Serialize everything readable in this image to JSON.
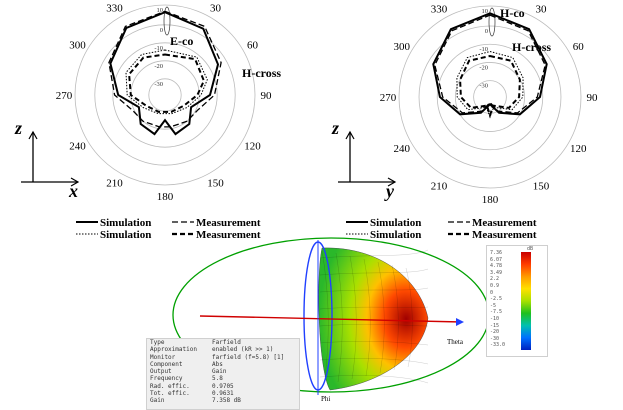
{
  "chart_data": [
    {
      "type": "polar",
      "angle_ticks": [
        "0",
        "30",
        "60",
        "90",
        "120",
        "150",
        "180",
        "210",
        "240",
        "270",
        "300",
        "330"
      ],
      "radial_ticks": [
        "10",
        "0",
        "-10",
        "-20",
        "-30"
      ],
      "axis_labels": {
        "vertical": "z",
        "horizontal": "x"
      },
      "series": [
        {
          "name": "E-co",
          "style": "solid"
        },
        {
          "name": "H-cross",
          "style": "dashed"
        }
      ],
      "legend": [
        {
          "label": "Simulation",
          "style": "solid"
        },
        {
          "label": "Measurement",
          "style": "dashed"
        },
        {
          "label": "Simulation",
          "style": "dotted"
        },
        {
          "label": "Measurement",
          "style": "bold-dashed"
        }
      ]
    },
    {
      "type": "polar",
      "angle_ticks": [
        "0",
        "30",
        "60",
        "90",
        "120",
        "150",
        "180",
        "210",
        "240",
        "270",
        "300",
        "330"
      ],
      "radial_ticks": [
        "10",
        "0",
        "-10",
        "-20",
        "-30"
      ],
      "axis_labels": {
        "vertical": "z",
        "horizontal": "y"
      },
      "series": [
        {
          "name": "H-co",
          "style": "solid"
        },
        {
          "name": "H-cross",
          "style": "dotted"
        }
      ],
      "legend": [
        {
          "label": "Simulation",
          "style": "solid"
        },
        {
          "label": "Measurement",
          "style": "dashed"
        },
        {
          "label": "Simulation",
          "style": "dotted"
        },
        {
          "label": "Measurement",
          "style": "bold-dashed"
        }
      ]
    },
    {
      "type": "3d-farfield",
      "axis_label": "Theta",
      "phi_label": "Phi",
      "info": [
        {
          "k": "Type",
          "v": "Farfield"
        },
        {
          "k": "Approximation",
          "v": "enabled (kR >> 1)"
        },
        {
          "k": "Monitor",
          "v": "farfield (f=5.8) [1]"
        },
        {
          "k": "Component",
          "v": "Abs"
        },
        {
          "k": "Output",
          "v": "Gain"
        },
        {
          "k": "Frequency",
          "v": "5.8"
        },
        {
          "k": "Rad. effic.",
          "v": "0.9705"
        },
        {
          "k": "Tot. effic.",
          "v": "0.9631"
        },
        {
          "k": "Gain",
          "v": "7.358 dB"
        }
      ],
      "scale_top": "dB",
      "scale_ticks": [
        "7.36",
        "6.07",
        "4.78",
        "3.49",
        "2.2",
        "0.9",
        "0",
        "-2.5",
        "-5",
        "-7.5",
        "-10",
        "-15",
        "-20",
        "-30",
        "-33.0"
      ],
      "colors": {
        "high": "#c80000",
        "mid": "#ffe000",
        "low": "#1ec01e",
        "min": "#0020c0",
        "axis": "#d00000",
        "ring": "#00a000",
        "phi": "#2040ff"
      }
    }
  ]
}
